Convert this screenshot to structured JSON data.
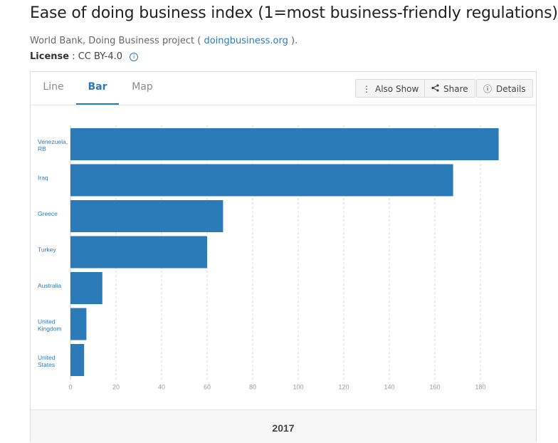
{
  "header": {
    "title": "Ease of doing business index (1=most business-friendly regulations)",
    "source_prefix": "World Bank, Doing Business project (",
    "source_link": "doingbusiness.org",
    "source_suffix": ").",
    "license_label": "License",
    "license_value": ": CC BY-4.0",
    "info_glyph": "i"
  },
  "tabs": [
    {
      "label": "Line",
      "active": false
    },
    {
      "label": "Bar",
      "active": true
    },
    {
      "label": "Map",
      "active": false
    }
  ],
  "toolbar": {
    "also_show": {
      "label": "Also Show",
      "icon": "more-vertical-icon",
      "glyph": "⋮"
    },
    "share": {
      "label": "Share",
      "icon": "share-icon",
      "glyph": "<"
    },
    "details": {
      "label": "Details",
      "icon": "info-circle-icon",
      "glyph": "ⓘ"
    }
  },
  "colors": {
    "bar": "#2b7bb9",
    "accent": "#2a7ab8",
    "label": "#2a7ab8",
    "tick": "#9a9a9a"
  },
  "chart_data": {
    "type": "bar",
    "orientation": "horizontal",
    "categories": [
      "Venezuela, RB",
      "Iraq",
      "Greece",
      "Turkey",
      "Australia",
      "United Kingdom",
      "United States"
    ],
    "category_lines": [
      [
        "Venezuela,",
        "RB"
      ],
      [
        "Iraq"
      ],
      [
        "Greece"
      ],
      [
        "Turkey"
      ],
      [
        "Australia"
      ],
      [
        "United",
        "Kingdom"
      ],
      [
        "United",
        "States"
      ]
    ],
    "values": [
      188,
      168,
      67,
      60,
      14,
      7,
      6
    ],
    "xlim": [
      0,
      190
    ],
    "xticks": [
      0,
      20,
      40,
      60,
      80,
      100,
      120,
      140,
      160,
      180
    ],
    "grid": true,
    "year": "2017"
  }
}
